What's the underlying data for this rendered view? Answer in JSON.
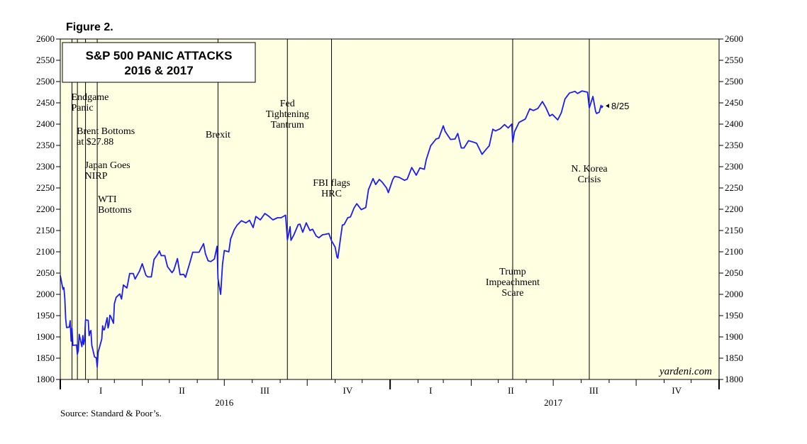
{
  "figure_label": "Figure 2.",
  "source": "Source: Standard & Poor’s.",
  "watermark": "yardeni.com",
  "colors": {
    "line": "#1a1aff",
    "plot_bg": "#ffffe1",
    "axis": "#000000"
  },
  "chart_data": {
    "type": "line",
    "title": [
      "S&P 500 PANIC ATTACKS",
      "2016 & 2017"
    ],
    "xlabel": "",
    "ylabel": "",
    "ylim": [
      1800,
      2600
    ],
    "y_ticks": [
      1800,
      1850,
      1900,
      1950,
      2000,
      2050,
      2100,
      2150,
      2200,
      2250,
      2300,
      2350,
      2400,
      2450,
      2500,
      2550,
      2600
    ],
    "xlim": [
      "2016-01-01",
      "2017-12-31"
    ],
    "quarter_labels": [
      {
        "label": "I",
        "date": "2016-02-15"
      },
      {
        "label": "II",
        "date": "2016-05-15"
      },
      {
        "label": "III",
        "date": "2016-08-15"
      },
      {
        "label": "IV",
        "date": "2016-11-15"
      },
      {
        "label": "I",
        "date": "2017-02-15"
      },
      {
        "label": "II",
        "date": "2017-05-15"
      },
      {
        "label": "III",
        "date": "2017-08-15"
      },
      {
        "label": "IV",
        "date": "2017-11-15"
      }
    ],
    "year_labels": [
      {
        "label": "2016",
        "date": "2016-07-01"
      },
      {
        "label": "2017",
        "date": "2017-07-01"
      }
    ],
    "end_label": "8/25",
    "events": [
      {
        "date": "2016-01-14",
        "lines": [
          "Endgame",
          "Panic"
        ]
      },
      {
        "date": "2016-01-20",
        "lines": [
          "Brent Bottoms",
          "at $27.88"
        ]
      },
      {
        "date": "2016-01-29",
        "lines": [
          "Japan Goes",
          "NIRP"
        ]
      },
      {
        "date": "2016-02-11",
        "lines": [
          "WTI",
          "Bottoms"
        ]
      },
      {
        "date": "2016-06-24",
        "lines": [
          "Brexit"
        ]
      },
      {
        "date": "2016-09-09",
        "lines": [
          "Fed",
          "Tightening",
          "Tantrum"
        ]
      },
      {
        "date": "2016-10-28",
        "lines": [
          "FBI flags",
          "HRC"
        ]
      },
      {
        "date": "2017-05-17",
        "lines": [
          "Trump",
          "Impeachment",
          "Scare"
        ]
      },
      {
        "date": "2017-08-10",
        "lines": [
          "N. Korea",
          "Crisis"
        ]
      }
    ],
    "series": [
      {
        "values": [
          [
            "2016-01-01",
            2044
          ],
          [
            "2016-01-04",
            2012
          ],
          [
            "2016-01-05",
            2016
          ],
          [
            "2016-01-06",
            1990
          ],
          [
            "2016-01-07",
            1943
          ],
          [
            "2016-01-08",
            1922
          ],
          [
            "2016-01-11",
            1923
          ],
          [
            "2016-01-12",
            1938
          ],
          [
            "2016-01-13",
            1890
          ],
          [
            "2016-01-14",
            1921
          ],
          [
            "2016-01-15",
            1880
          ],
          [
            "2016-01-19",
            1881
          ],
          [
            "2016-01-20",
            1859
          ],
          [
            "2016-01-21",
            1868
          ],
          [
            "2016-01-22",
            1906
          ],
          [
            "2016-01-25",
            1877
          ],
          [
            "2016-01-26",
            1903
          ],
          [
            "2016-01-27",
            1882
          ],
          [
            "2016-01-28",
            1893
          ],
          [
            "2016-01-29",
            1940
          ],
          [
            "2016-02-01",
            1939
          ],
          [
            "2016-02-02",
            1903
          ],
          [
            "2016-02-03",
            1912
          ],
          [
            "2016-02-04",
            1915
          ],
          [
            "2016-02-05",
            1880
          ],
          [
            "2016-02-08",
            1853
          ],
          [
            "2016-02-09",
            1852
          ],
          [
            "2016-02-10",
            1851
          ],
          [
            "2016-02-11",
            1829
          ],
          [
            "2016-02-12",
            1864
          ],
          [
            "2016-02-16",
            1895
          ],
          [
            "2016-02-17",
            1926
          ],
          [
            "2016-02-18",
            1917
          ],
          [
            "2016-02-19",
            1917
          ],
          [
            "2016-02-22",
            1945
          ],
          [
            "2016-02-23",
            1921
          ],
          [
            "2016-02-24",
            1929
          ],
          [
            "2016-02-25",
            1951
          ],
          [
            "2016-02-26",
            1948
          ],
          [
            "2016-02-29",
            1932
          ],
          [
            "2016-03-01",
            1978
          ],
          [
            "2016-03-03",
            1993
          ],
          [
            "2016-03-07",
            2001
          ],
          [
            "2016-03-09",
            1989
          ],
          [
            "2016-03-11",
            2022
          ],
          [
            "2016-03-15",
            2015
          ],
          [
            "2016-03-18",
            2049
          ],
          [
            "2016-03-22",
            2049
          ],
          [
            "2016-03-24",
            2036
          ],
          [
            "2016-03-29",
            2055
          ],
          [
            "2016-04-01",
            2072
          ],
          [
            "2016-04-05",
            2045
          ],
          [
            "2016-04-07",
            2041
          ],
          [
            "2016-04-11",
            2041
          ],
          [
            "2016-04-14",
            2082
          ],
          [
            "2016-04-18",
            2094
          ],
          [
            "2016-04-20",
            2102
          ],
          [
            "2016-04-22",
            2091
          ],
          [
            "2016-04-26",
            2091
          ],
          [
            "2016-04-29",
            2065
          ],
          [
            "2016-05-04",
            2051
          ],
          [
            "2016-05-06",
            2057
          ],
          [
            "2016-05-10",
            2084
          ],
          [
            "2016-05-13",
            2046
          ],
          [
            "2016-05-17",
            2047
          ],
          [
            "2016-05-19",
            2040
          ],
          [
            "2016-05-24",
            2076
          ],
          [
            "2016-05-27",
            2099
          ],
          [
            "2016-06-01",
            2099
          ],
          [
            "2016-06-03",
            2099
          ],
          [
            "2016-06-08",
            2119
          ],
          [
            "2016-06-10",
            2096
          ],
          [
            "2016-06-13",
            2079
          ],
          [
            "2016-06-16",
            2077
          ],
          [
            "2016-06-20",
            2083
          ],
          [
            "2016-06-23",
            2113
          ],
          [
            "2016-06-24",
            2037
          ],
          [
            "2016-06-27",
            2000
          ],
          [
            "2016-06-28",
            2036
          ],
          [
            "2016-06-29",
            2071
          ],
          [
            "2016-07-01",
            2103
          ],
          [
            "2016-07-06",
            2100
          ],
          [
            "2016-07-08",
            2130
          ],
          [
            "2016-07-12",
            2152
          ],
          [
            "2016-07-15",
            2162
          ],
          [
            "2016-07-20",
            2173
          ],
          [
            "2016-07-25",
            2168
          ],
          [
            "2016-07-29",
            2174
          ],
          [
            "2016-08-02",
            2157
          ],
          [
            "2016-08-05",
            2183
          ],
          [
            "2016-08-10",
            2175
          ],
          [
            "2016-08-15",
            2190
          ],
          [
            "2016-08-19",
            2184
          ],
          [
            "2016-08-24",
            2175
          ],
          [
            "2016-08-29",
            2180
          ],
          [
            "2016-09-02",
            2180
          ],
          [
            "2016-09-07",
            2186
          ],
          [
            "2016-09-09",
            2128
          ],
          [
            "2016-09-12",
            2159
          ],
          [
            "2016-09-13",
            2127
          ],
          [
            "2016-09-16",
            2139
          ],
          [
            "2016-09-21",
            2164
          ],
          [
            "2016-09-23",
            2165
          ],
          [
            "2016-09-26",
            2146
          ],
          [
            "2016-09-30",
            2168
          ],
          [
            "2016-10-04",
            2150
          ],
          [
            "2016-10-07",
            2153
          ],
          [
            "2016-10-11",
            2137
          ],
          [
            "2016-10-14",
            2133
          ],
          [
            "2016-10-18",
            2140
          ],
          [
            "2016-10-21",
            2141
          ],
          [
            "2016-10-25",
            2143
          ],
          [
            "2016-10-28",
            2126
          ],
          [
            "2016-11-01",
            2111
          ],
          [
            "2016-11-03",
            2088
          ],
          [
            "2016-11-04",
            2085
          ],
          [
            "2016-11-07",
            2132
          ],
          [
            "2016-11-09",
            2163
          ],
          [
            "2016-11-11",
            2164
          ],
          [
            "2016-11-15",
            2180
          ],
          [
            "2016-11-18",
            2182
          ],
          [
            "2016-11-22",
            2203
          ],
          [
            "2016-11-25",
            2213
          ],
          [
            "2016-11-30",
            2199
          ],
          [
            "2016-12-05",
            2204
          ],
          [
            "2016-12-08",
            2246
          ],
          [
            "2016-12-13",
            2272
          ],
          [
            "2016-12-16",
            2258
          ],
          [
            "2016-12-20",
            2270
          ],
          [
            "2016-12-23",
            2264
          ],
          [
            "2016-12-28",
            2250
          ],
          [
            "2016-12-30",
            2239
          ],
          [
            "2017-01-04",
            2270
          ],
          [
            "2017-01-06",
            2277
          ],
          [
            "2017-01-11",
            2275
          ],
          [
            "2017-01-17",
            2268
          ],
          [
            "2017-01-20",
            2271
          ],
          [
            "2017-01-25",
            2298
          ],
          [
            "2017-01-30",
            2280
          ],
          [
            "2017-02-03",
            2297
          ],
          [
            "2017-02-08",
            2294
          ],
          [
            "2017-02-10",
            2316
          ],
          [
            "2017-02-15",
            2349
          ],
          [
            "2017-02-21",
            2365
          ],
          [
            "2017-02-24",
            2367
          ],
          [
            "2017-03-01",
            2396
          ],
          [
            "2017-03-03",
            2383
          ],
          [
            "2017-03-09",
            2364
          ],
          [
            "2017-03-14",
            2365
          ],
          [
            "2017-03-17",
            2378
          ],
          [
            "2017-03-21",
            2344
          ],
          [
            "2017-03-24",
            2344
          ],
          [
            "2017-03-29",
            2361
          ],
          [
            "2017-04-03",
            2358
          ],
          [
            "2017-04-07",
            2355
          ],
          [
            "2017-04-13",
            2329
          ],
          [
            "2017-04-18",
            2342
          ],
          [
            "2017-04-21",
            2349
          ],
          [
            "2017-04-25",
            2388
          ],
          [
            "2017-04-28",
            2384
          ],
          [
            "2017-05-03",
            2389
          ],
          [
            "2017-05-08",
            2399
          ],
          [
            "2017-05-12",
            2391
          ],
          [
            "2017-05-16",
            2400
          ],
          [
            "2017-05-17",
            2357
          ],
          [
            "2017-05-19",
            2382
          ],
          [
            "2017-05-24",
            2404
          ],
          [
            "2017-05-31",
            2412
          ],
          [
            "2017-06-05",
            2436
          ],
          [
            "2017-06-09",
            2432
          ],
          [
            "2017-06-14",
            2437
          ],
          [
            "2017-06-19",
            2453
          ],
          [
            "2017-06-23",
            2438
          ],
          [
            "2017-06-27",
            2419
          ],
          [
            "2017-06-30",
            2423
          ],
          [
            "2017-07-06",
            2410
          ],
          [
            "2017-07-10",
            2427
          ],
          [
            "2017-07-14",
            2459
          ],
          [
            "2017-07-19",
            2473
          ],
          [
            "2017-07-25",
            2477
          ],
          [
            "2017-07-28",
            2472
          ],
          [
            "2017-08-02",
            2478
          ],
          [
            "2017-08-08",
            2475
          ],
          [
            "2017-08-10",
            2438
          ],
          [
            "2017-08-14",
            2465
          ],
          [
            "2017-08-17",
            2430
          ],
          [
            "2017-08-18",
            2425
          ],
          [
            "2017-08-21",
            2428
          ],
          [
            "2017-08-23",
            2444
          ],
          [
            "2017-08-24",
            2439
          ],
          [
            "2017-08-25",
            2443
          ]
        ]
      }
    ]
  }
}
